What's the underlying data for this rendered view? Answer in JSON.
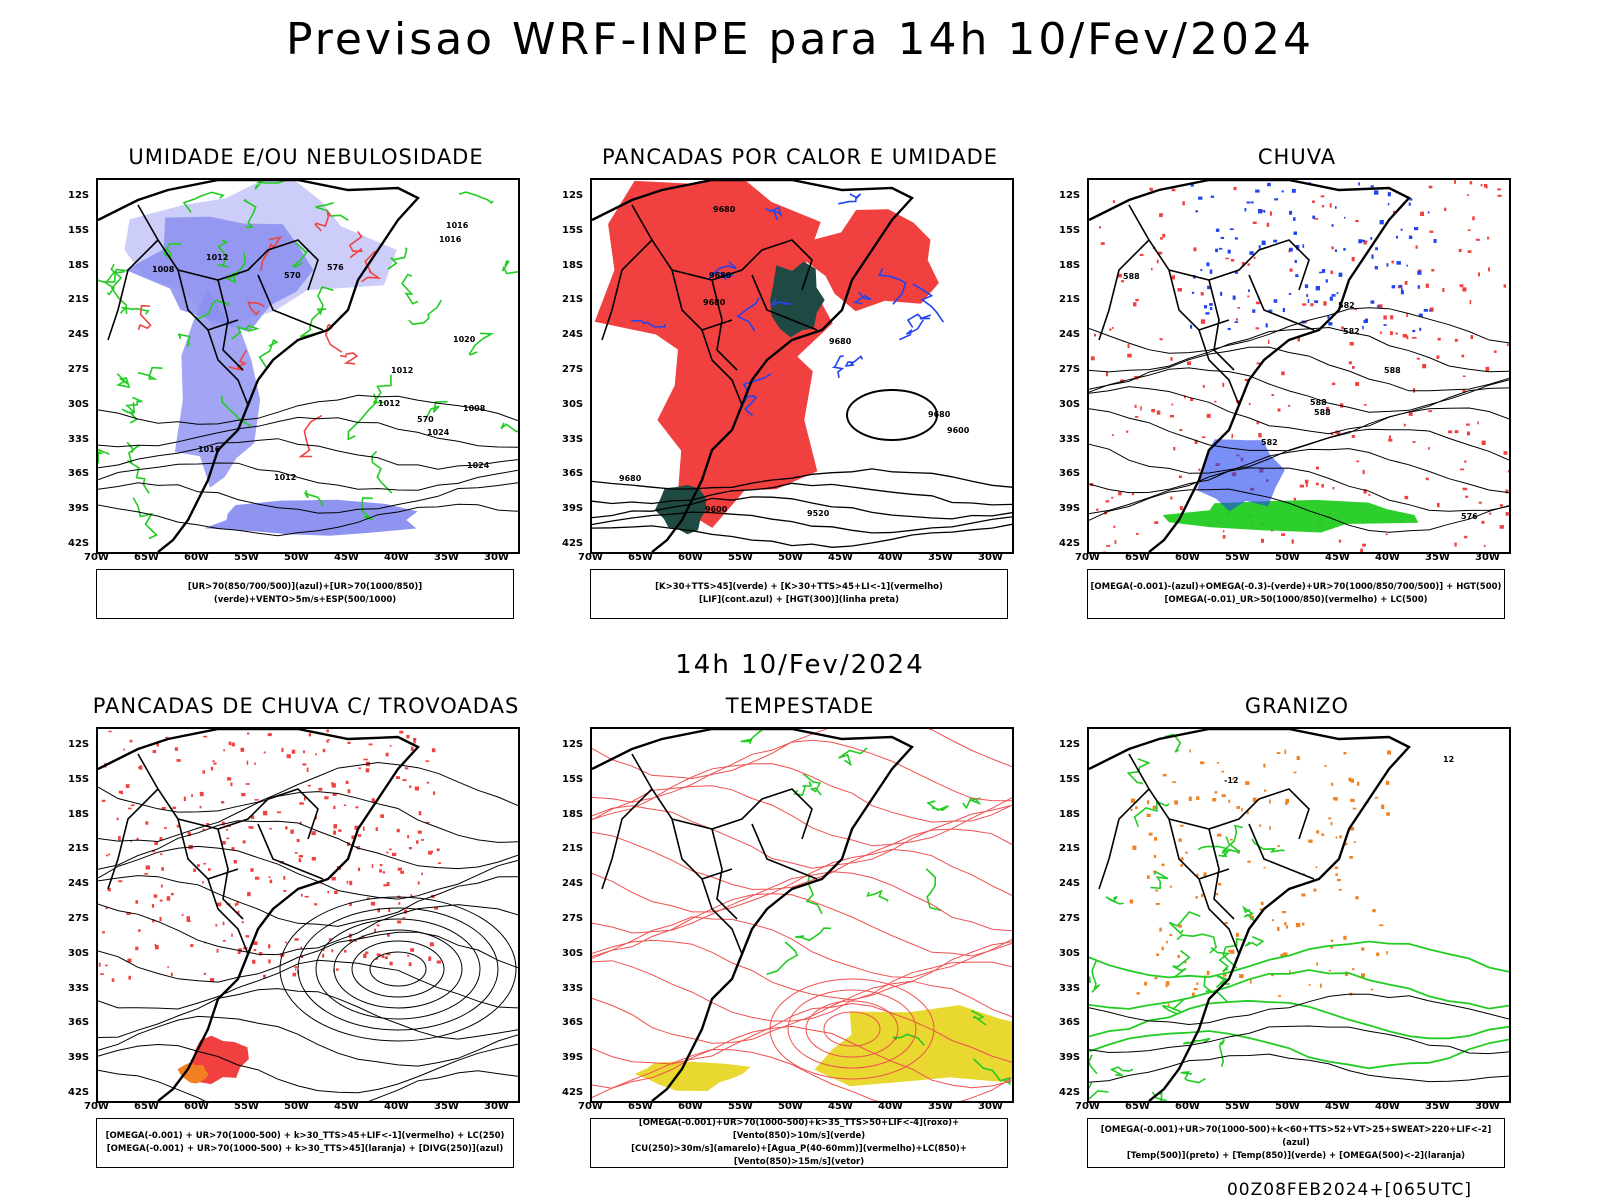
{
  "title": "Previsao WRF-INPE  para 14h 10/Fev/2024",
  "subtitle": "14h 10/Fev/2024",
  "footer": "00Z08FEB2024+[065UTC]",
  "lat_labels": [
    "12S",
    "15S",
    "18S",
    "21S",
    "24S",
    "27S",
    "30S",
    "33S",
    "36S",
    "39S",
    "42S"
  ],
  "lon_labels": [
    "70W",
    "65W",
    "60W",
    "55W",
    "50W",
    "45W",
    "40W",
    "35W",
    "30W"
  ],
  "panels": [
    {
      "title": "UMIDADE E/OU NEBULOSIDADE",
      "legend": [
        "[UR>70(850/700/500)](azul)+[UR>70(1000/850)](verde)+VENTO>5m/s+ESP(500/1000)"
      ],
      "labels": [
        "1016",
        "1012",
        "1008",
        "1016",
        "1012",
        "1016",
        "1012",
        "1020",
        "1024",
        "1024",
        "1008",
        "570",
        "570",
        "576",
        "1012"
      ],
      "colors": {
        "fill": "#8a8ef0",
        "fill2": "#c8c8f8",
        "line": "#22cc22",
        "accent": "#ee4444"
      }
    },
    {
      "title": "PANCADAS POR CALOR E UMIDADE",
      "legend": [
        "[K>30+TTS>45](verde) + [K>30+TTS>45+LI<-1](vermelho)",
        "[LIF](cont.azul) + [HGT(300)](linha preta)"
      ],
      "labels": [
        "9680",
        "9680",
        "9680",
        "9680",
        "9680",
        "9600",
        "9520",
        "9680",
        "9600"
      ],
      "colors": {
        "fill": "#f04040",
        "fill2": "#1f4a44",
        "line": "#2244ee",
        "accent": "#000000"
      }
    },
    {
      "title": "CHUVA",
      "legend": [
        "[OMEGA(-0.001)-(azul)+OMEGA(-0.3)-(verde)+UR>70(1000/850/700/500)] + HGT(500)",
        "[OMEGA(-0.01)_UR>50(1000/850)(vermelho) + LC(500)"
      ],
      "labels": [
        "582",
        "588",
        "588",
        "588",
        "582",
        "576",
        "582",
        "588"
      ],
      "colors": {
        "fill": "#f04040",
        "fill2": "#22cc22",
        "line": "#2244ee",
        "accent": "#000000"
      }
    },
    {
      "title": "PANCADAS DE CHUVA C/ TROVOADAS",
      "legend": [
        "[OMEGA(-0.001) + UR>70(1000-500) + k>30_TTS>45+LIF<-1](vermelho) + LC(250)",
        "[OMEGA(-0.001) + UR>70(1000-500) + k>30_TTS>45](laranja) + [DIVG(250)](azul)"
      ],
      "labels": [],
      "colors": {
        "fill": "#f04040",
        "fill2": "#f08020",
        "line": "#2244ee",
        "accent": "#000000"
      }
    },
    {
      "title": "TEMPESTADE",
      "legend": [
        "[OMEGA(-0.001)+UR>70(1000-500)+k>35_TTS>50+LIF<-4](roxo)+[Vento(850)>10m/s](verde)",
        "[CU(250)>30m/s](amarelo)+[Agua_P(40-60mm)](vermelho)+LC(850)+[Vento(850)>15m/s](vetor)"
      ],
      "labels": [],
      "colors": {
        "fill": "#e8d830",
        "fill2": "#22cc22",
        "line": "#f05050",
        "accent": "#000000"
      }
    },
    {
      "title": "GRANIZO",
      "legend": [
        "[OMEGA(-0.001)+UR>70(1000-500)+k<60+TTS>52+VT>25+SWEAT>220+LIF<-2](azul)",
        "[Temp(500)](preto) + [Temp(850)](verde) + [OMEGA(500)<-2](laranja)"
      ],
      "labels": [
        "-12",
        "12"
      ],
      "colors": {
        "fill": "#f08020",
        "fill2": "#22cc22",
        "line": "#22cc22",
        "accent": "#000000"
      }
    }
  ]
}
